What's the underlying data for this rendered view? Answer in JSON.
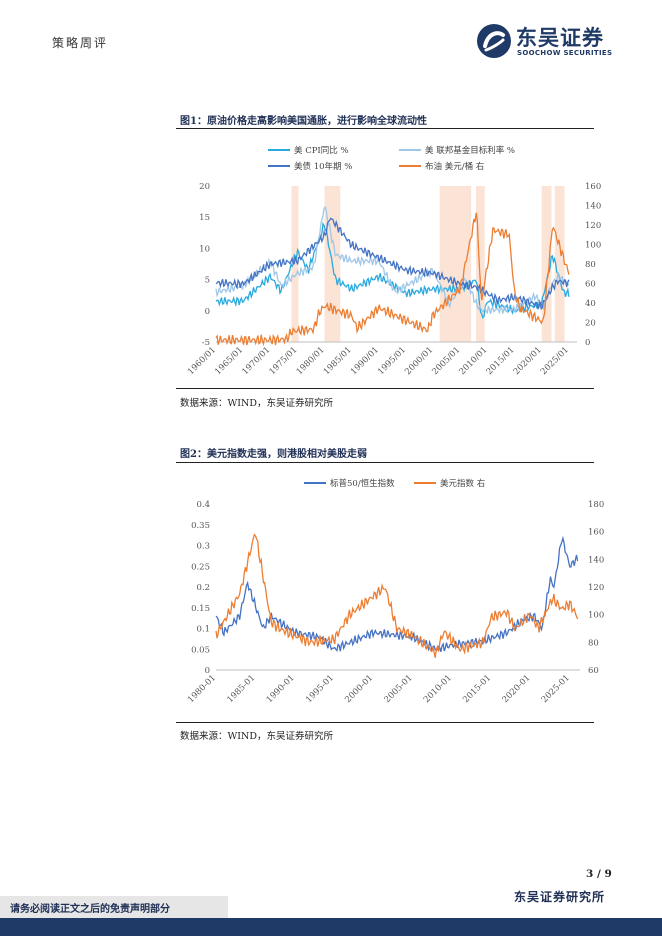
{
  "header": {
    "section": "策略周评",
    "logo_cn": "东吴证券",
    "logo_en": "SOOCHOW SECURITIES"
  },
  "figure1": {
    "title": "图1：原油价格走高影响美国通胀，进行影响全球流动性",
    "source": "数据来源：WIND，东吴证券研究所"
  },
  "figure2": {
    "title": "图2：美元指数走强，则港股相对美股走弱",
    "source": "数据来源：WIND，东吴证券研究所"
  },
  "footer": {
    "page": "3 / 9",
    "org": "东吴证券研究所",
    "disclaimer": "请务必阅读正文之后的免责声明部分"
  },
  "colors": {
    "cpi": "#29a9de",
    "fed": "#9ec7e8",
    "ust10": "#4472c4",
    "brent": "#ed7d31",
    "recession": "#fbe3d6",
    "navy": "#1f3a66"
  },
  "chart_data": [
    {
      "type": "line",
      "series": [
        {
          "name": "美 CPI同比 %",
          "axis": "left",
          "color": "#29a9de",
          "x": [
            1960,
            1965,
            1970,
            1972,
            1975,
            1977,
            1980,
            1982,
            1985,
            1990,
            1995,
            2000,
            2005,
            2008,
            2009,
            2010,
            2015,
            2020,
            2022,
            2024,
            2025
          ],
          "y": [
            1.5,
            1.6,
            5.5,
            3.2,
            9.5,
            6.5,
            14,
            5,
            3.5,
            5.5,
            2.8,
            3.5,
            3.5,
            5,
            -1.5,
            1.6,
            0,
            1.2,
            9,
            3,
            2.7
          ]
        },
        {
          "name": "美 联邦基金目标利率 %",
          "axis": "left",
          "color": "#9ec7e8",
          "x": [
            1960,
            1965,
            1970,
            1972,
            1975,
            1978,
            1980,
            1982,
            1985,
            1990,
            1993,
            2000,
            2003,
            2006,
            2008,
            2009,
            2015,
            2019,
            2020,
            2022,
            2023,
            2025
          ],
          "y": [
            3,
            4,
            8,
            4,
            6,
            7,
            17,
            9,
            8,
            8,
            3,
            6.5,
            1,
            5.25,
            1,
            0.1,
            0.25,
            2.4,
            0.1,
            4.5,
            5.4,
            4.3
          ]
        },
        {
          "name": "美债 10年期 %",
          "axis": "left",
          "color": "#4472c4",
          "x": [
            1960,
            1965,
            1970,
            1975,
            1980,
            1981,
            1985,
            1990,
            1995,
            2000,
            2005,
            2008,
            2012,
            2015,
            2020,
            2022,
            2023,
            2025
          ],
          "y": [
            4.5,
            4.3,
            7.5,
            8,
            12,
            15,
            10.5,
            8.5,
            6.5,
            6,
            4.3,
            3.8,
            1.7,
            2.2,
            0.7,
            3.8,
            4.8,
            4.4
          ]
        },
        {
          "name": "布油 美元/桶 右",
          "axis": "right",
          "color": "#ed7d31",
          "x": [
            1960,
            1970,
            1973,
            1974,
            1978,
            1979,
            1980,
            1985,
            1986,
            1990,
            1999,
            2000,
            2005,
            2008,
            2008.9,
            2011,
            2014,
            2015,
            2016,
            2020.3,
            2022,
            2025
          ],
          "y": [
            2,
            2,
            3,
            11,
            13,
            30,
            37,
            27,
            14,
            35,
            12,
            28,
            55,
            135,
            40,
            115,
            110,
            50,
            35,
            20,
            120,
            70
          ]
        }
      ],
      "x_ticks": [
        "1960/01",
        "1965/01",
        "1970/01",
        "1975/01",
        "1980/01",
        "1985/01",
        "1990/01",
        "1995/01",
        "2000/01",
        "2005/01",
        "2010/01",
        "2015/01",
        "2020/01",
        "2025/01"
      ],
      "y_left_ticks": [
        -5,
        0,
        5,
        10,
        15,
        20
      ],
      "y_right_ticks": [
        0,
        20,
        40,
        60,
        80,
        100,
        120,
        140,
        160
      ],
      "ylim_left": [
        -5,
        20
      ],
      "ylim_right": [
        0,
        160
      ],
      "xlim": [
        1960,
        2026.5
      ],
      "recessions": [
        [
          1973.9,
          1975.2
        ],
        [
          1980,
          1982.9
        ],
        [
          2001.2,
          2007
        ],
        [
          2007.9,
          2009.5
        ],
        [
          2020,
          2021.8
        ],
        [
          2022.4,
          2024.2
        ]
      ],
      "legend": "top"
    },
    {
      "type": "line",
      "series": [
        {
          "name": "标普50/恒生指数",
          "axis": "left",
          "color": "#4472c4",
          "x": [
            1980,
            1981,
            1983,
            1984,
            1986,
            1987,
            1990,
            1993,
            1995,
            2000,
            2005,
            2008,
            2010,
            2014,
            2017,
            2019,
            2020.5,
            2021.5,
            2022.5,
            2023,
            2024,
            2025,
            2026
          ],
          "y": [
            0.13,
            0.09,
            0.13,
            0.21,
            0.1,
            0.13,
            0.09,
            0.08,
            0.05,
            0.09,
            0.08,
            0.05,
            0.06,
            0.07,
            0.09,
            0.12,
            0.13,
            0.1,
            0.22,
            0.2,
            0.32,
            0.25,
            0.27
          ]
        },
        {
          "name": "美元指数 右",
          "axis": "right",
          "color": "#ed7d31",
          "x": [
            1980,
            1981,
            1983,
            1985,
            1987,
            1988,
            1990,
            1992,
            1995,
            1997,
            2001.5,
            2003,
            2005,
            2008,
            2009,
            2011,
            2014,
            2015,
            2017,
            2018,
            2020,
            2021,
            2022.8,
            2024,
            2025,
            2026
          ],
          "y": [
            85,
            95,
            115,
            160,
            95,
            90,
            85,
            80,
            82,
            100,
            120,
            90,
            85,
            72,
            88,
            75,
            80,
            98,
            102,
            90,
            100,
            90,
            112,
            104,
            108,
            98
          ]
        }
      ],
      "x_ticks": [
        "1980-01",
        "1985-01",
        "1990-01",
        "1995-01",
        "2000-01",
        "2005-01",
        "2010-01",
        "2015-01",
        "2020-01",
        "2025-01"
      ],
      "y_left_ticks": [
        0,
        0.05,
        0.1,
        0.15,
        0.2,
        0.25,
        0.3,
        0.35,
        0.4
      ],
      "y_right_ticks": [
        60,
        80,
        100,
        120,
        140,
        160,
        180
      ],
      "ylim_left": [
        0,
        0.4
      ],
      "ylim_right": [
        60,
        180
      ],
      "xlim": [
        1980,
        2026.3
      ],
      "legend": "top"
    }
  ]
}
